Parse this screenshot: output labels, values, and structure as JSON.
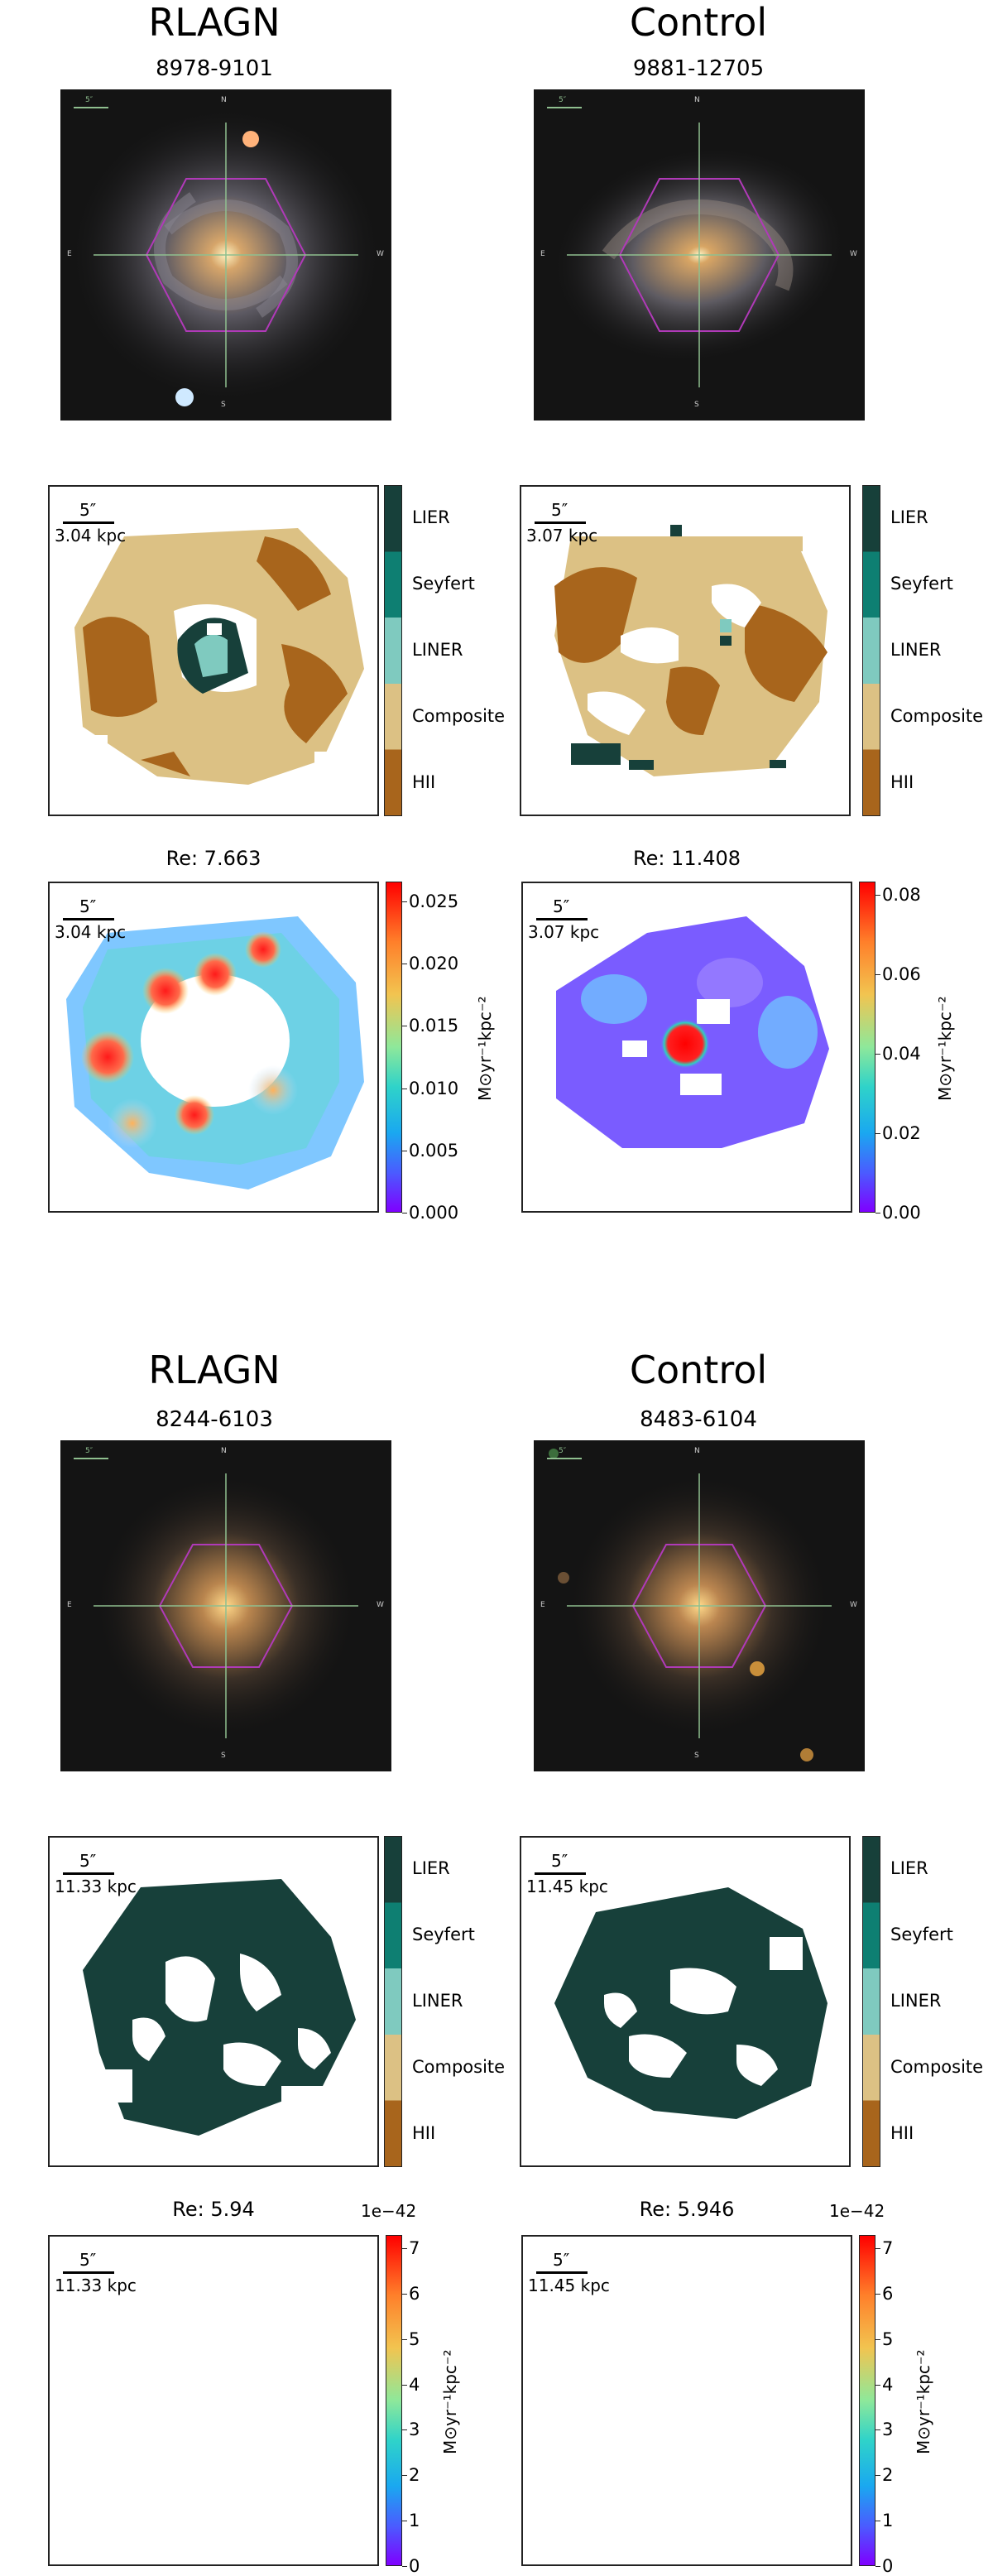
{
  "figure": {
    "blocks": [
      {
        "panels": [
          {
            "group": "RLAGN",
            "plate_ifu": "8978-9101",
            "re_label": "Re: 7.663",
            "scale_arcsec": "5″",
            "scale_kpc": "3.04 kpc",
            "sfr_ticks": [
              "0.025",
              "0.020",
              "0.015",
              "0.010",
              "0.005",
              "0.000"
            ],
            "sfr_exponent": ""
          },
          {
            "group": "Control",
            "plate_ifu": "9881-12705",
            "re_label": "Re: 11.408",
            "scale_arcsec": "5″",
            "scale_kpc": "3.07 kpc",
            "sfr_ticks": [
              "0.08",
              "0.06",
              "0.04",
              "0.02",
              "0.00"
            ],
            "sfr_exponent": ""
          }
        ]
      },
      {
        "panels": [
          {
            "group": "RLAGN",
            "plate_ifu": "8244-6103",
            "re_label": "Re: 5.94",
            "scale_arcsec": "5″",
            "scale_kpc": "11.33 kpc",
            "sfr_ticks": [
              "7",
              "6",
              "5",
              "4",
              "3",
              "2",
              "1",
              "0"
            ],
            "sfr_exponent": "1e−42"
          },
          {
            "group": "Control",
            "plate_ifu": "8483-6104",
            "re_label": "Re: 5.946",
            "scale_arcsec": "5″",
            "scale_kpc": "11.45 kpc",
            "sfr_ticks": [
              "7",
              "6",
              "5",
              "4",
              "3",
              "2",
              "1",
              "0"
            ],
            "sfr_exponent": "1e−42"
          }
        ]
      }
    ],
    "bpt_classes": [
      "LIER",
      "Seyfert",
      "LINER",
      "Composite",
      "HII"
    ],
    "bpt_colors": [
      "#17403a",
      "#0e7f72",
      "#7fcabf",
      "#dcc184",
      "#a8651c"
    ],
    "sfr_unit": "M⊙yr⁻¹kpc⁻²",
    "compass": {
      "n": "N",
      "s": "S",
      "e": "E",
      "w": "W",
      "sky_scale": "5″"
    }
  }
}
